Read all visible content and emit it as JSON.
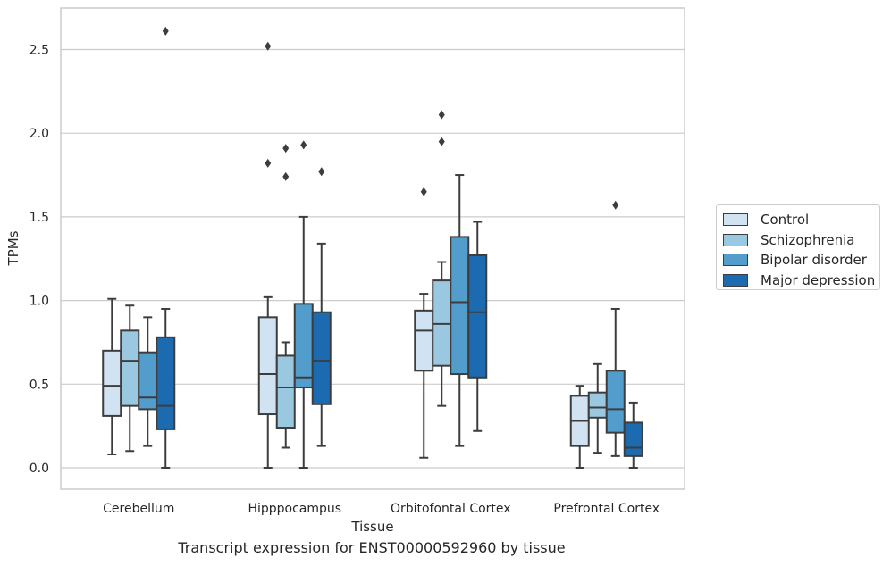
{
  "caption": "Transcript expression for ENST00000592960 by tissue",
  "chart_data": {
    "type": "boxplot",
    "title": "",
    "xlabel": "Tissue",
    "ylabel": "TPMs",
    "ylim": [
      -0.12,
      2.76
    ],
    "yticks": [
      0.0,
      0.5,
      1.0,
      1.5,
      2.0,
      2.5
    ],
    "ytick_labels": [
      "0.0",
      "0.5",
      "1.0",
      "1.5",
      "2.0",
      "2.5"
    ],
    "grid": "horizontal",
    "legend_placement": "right",
    "categories": [
      "Cerebellum",
      "Hipppocampus",
      "Orbitofontal Cortex",
      "Prefrontal Cortex"
    ],
    "series": [
      {
        "name": "Control",
        "color": "#d1e2f2",
        "boxes": [
          {
            "whislo": 0.08,
            "q1": 0.31,
            "med": 0.49,
            "q3": 0.7,
            "whishi": 1.01,
            "fliers": []
          },
          {
            "whislo": 0.0,
            "q1": 0.32,
            "med": 0.56,
            "q3": 0.9,
            "whishi": 1.02,
            "fliers": [
              1.82,
              2.52
            ]
          },
          {
            "whislo": 0.06,
            "q1": 0.58,
            "med": 0.82,
            "q3": 0.94,
            "whishi": 1.04,
            "fliers": [
              1.65
            ]
          },
          {
            "whislo": 0.0,
            "q1": 0.13,
            "med": 0.28,
            "q3": 0.43,
            "whishi": 0.49,
            "fliers": []
          }
        ]
      },
      {
        "name": "Schizophrenia",
        "color": "#9ac8e0",
        "boxes": [
          {
            "whislo": 0.1,
            "q1": 0.37,
            "med": 0.64,
            "q3": 0.82,
            "whishi": 0.97,
            "fliers": []
          },
          {
            "whislo": 0.12,
            "q1": 0.24,
            "med": 0.48,
            "q3": 0.67,
            "whishi": 0.75,
            "fliers": [
              1.74,
              1.91
            ]
          },
          {
            "whislo": 0.37,
            "q1": 0.61,
            "med": 0.86,
            "q3": 1.12,
            "whishi": 1.23,
            "fliers": [
              1.95,
              2.11
            ]
          },
          {
            "whislo": 0.09,
            "q1": 0.3,
            "med": 0.36,
            "q3": 0.45,
            "whishi": 0.62,
            "fliers": []
          }
        ]
      },
      {
        "name": "Bipolar disorder",
        "color": "#529dcc",
        "boxes": [
          {
            "whislo": 0.13,
            "q1": 0.35,
            "med": 0.42,
            "q3": 0.69,
            "whishi": 0.9,
            "fliers": []
          },
          {
            "whislo": 0.0,
            "q1": 0.48,
            "med": 0.54,
            "q3": 0.98,
            "whishi": 1.5,
            "fliers": [
              1.93
            ]
          },
          {
            "whislo": 0.13,
            "q1": 0.56,
            "med": 0.99,
            "q3": 1.38,
            "whishi": 1.75,
            "fliers": []
          },
          {
            "whislo": 0.07,
            "q1": 0.21,
            "med": 0.35,
            "q3": 0.58,
            "whishi": 0.95,
            "fliers": [
              1.57
            ]
          }
        ]
      },
      {
        "name": "Major depression",
        "color": "#1c6aaf",
        "boxes": [
          {
            "whislo": 0.0,
            "q1": 0.23,
            "med": 0.37,
            "q3": 0.78,
            "whishi": 0.95,
            "fliers": [
              2.61
            ]
          },
          {
            "whislo": 0.13,
            "q1": 0.38,
            "med": 0.64,
            "q3": 0.93,
            "whishi": 1.34,
            "fliers": [
              1.77
            ]
          },
          {
            "whislo": 0.22,
            "q1": 0.54,
            "med": 0.93,
            "q3": 1.27,
            "whishi": 1.47,
            "fliers": []
          },
          {
            "whislo": 0.0,
            "q1": 0.07,
            "med": 0.12,
            "q3": 0.27,
            "whishi": 0.39,
            "fliers": []
          }
        ]
      }
    ]
  }
}
